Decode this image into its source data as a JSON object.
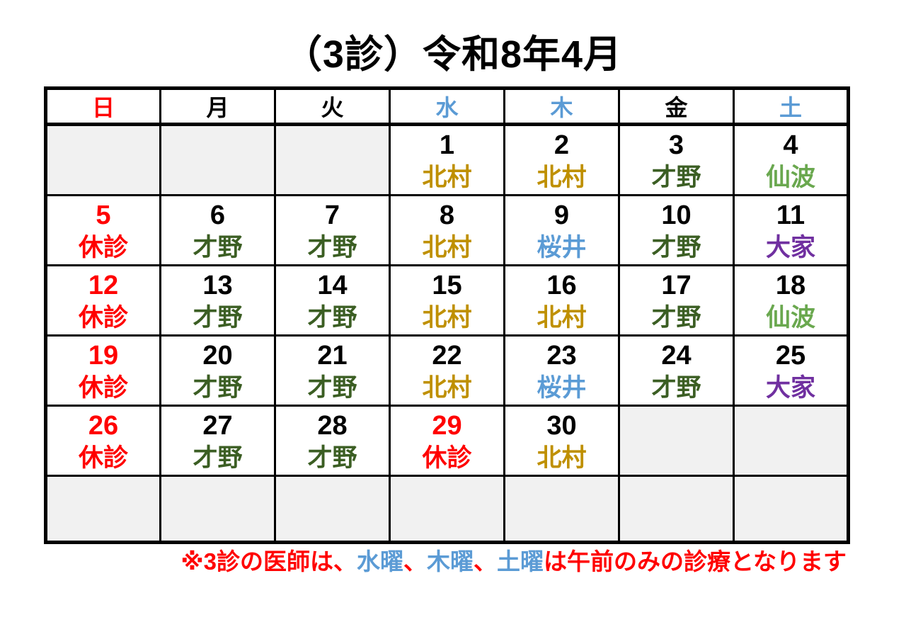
{
  "title": "（3診）令和8年4月",
  "colors": {
    "red": "#ff0000",
    "blue": "#5b9bd5",
    "black": "#000000",
    "gold": "#bf9000",
    "dark_green": "#3b5e23",
    "light_green": "#6aa84f",
    "purple": "#7030a0",
    "empty_bg": "#f1f1f1"
  },
  "weekdays": [
    {
      "label": "日",
      "color": "red"
    },
    {
      "label": "月",
      "color": "black"
    },
    {
      "label": "火",
      "color": "black"
    },
    {
      "label": "水",
      "color": "blue"
    },
    {
      "label": "木",
      "color": "blue"
    },
    {
      "label": "金",
      "color": "black"
    },
    {
      "label": "土",
      "color": "blue"
    }
  ],
  "weeks": [
    [
      {
        "empty": true
      },
      {
        "empty": true
      },
      {
        "empty": true
      },
      {
        "day": "1",
        "day_color": "black",
        "name": "北村",
        "name_color": "gold"
      },
      {
        "day": "2",
        "day_color": "black",
        "name": "北村",
        "name_color": "gold"
      },
      {
        "day": "3",
        "day_color": "black",
        "name": "才野",
        "name_color": "dark_green"
      },
      {
        "day": "4",
        "day_color": "black",
        "name": "仙波",
        "name_color": "light_green"
      }
    ],
    [
      {
        "day": "5",
        "day_color": "red",
        "name": "休診",
        "name_color": "red"
      },
      {
        "day": "6",
        "day_color": "black",
        "name": "才野",
        "name_color": "dark_green"
      },
      {
        "day": "7",
        "day_color": "black",
        "name": "才野",
        "name_color": "dark_green"
      },
      {
        "day": "8",
        "day_color": "black",
        "name": "北村",
        "name_color": "gold"
      },
      {
        "day": "9",
        "day_color": "black",
        "name": "桜井",
        "name_color": "blue"
      },
      {
        "day": "10",
        "day_color": "black",
        "name": "才野",
        "name_color": "dark_green"
      },
      {
        "day": "11",
        "day_color": "black",
        "name": "大家",
        "name_color": "purple"
      }
    ],
    [
      {
        "day": "12",
        "day_color": "red",
        "name": "休診",
        "name_color": "red"
      },
      {
        "day": "13",
        "day_color": "black",
        "name": "才野",
        "name_color": "dark_green"
      },
      {
        "day": "14",
        "day_color": "black",
        "name": "才野",
        "name_color": "dark_green"
      },
      {
        "day": "15",
        "day_color": "black",
        "name": "北村",
        "name_color": "gold"
      },
      {
        "day": "16",
        "day_color": "black",
        "name": "北村",
        "name_color": "gold"
      },
      {
        "day": "17",
        "day_color": "black",
        "name": "才野",
        "name_color": "dark_green"
      },
      {
        "day": "18",
        "day_color": "black",
        "name": "仙波",
        "name_color": "light_green"
      }
    ],
    [
      {
        "day": "19",
        "day_color": "red",
        "name": "休診",
        "name_color": "red"
      },
      {
        "day": "20",
        "day_color": "black",
        "name": "才野",
        "name_color": "dark_green"
      },
      {
        "day": "21",
        "day_color": "black",
        "name": "才野",
        "name_color": "dark_green"
      },
      {
        "day": "22",
        "day_color": "black",
        "name": "北村",
        "name_color": "gold"
      },
      {
        "day": "23",
        "day_color": "black",
        "name": "桜井",
        "name_color": "blue"
      },
      {
        "day": "24",
        "day_color": "black",
        "name": "才野",
        "name_color": "dark_green"
      },
      {
        "day": "25",
        "day_color": "black",
        "name": "大家",
        "name_color": "purple"
      }
    ],
    [
      {
        "day": "26",
        "day_color": "red",
        "name": "休診",
        "name_color": "red"
      },
      {
        "day": "27",
        "day_color": "black",
        "name": "才野",
        "name_color": "dark_green"
      },
      {
        "day": "28",
        "day_color": "black",
        "name": "才野",
        "name_color": "dark_green"
      },
      {
        "day": "29",
        "day_color": "red",
        "name": "休診",
        "name_color": "red"
      },
      {
        "day": "30",
        "day_color": "black",
        "name": "北村",
        "name_color": "gold"
      },
      {
        "empty": true
      },
      {
        "empty": true
      }
    ],
    [
      {
        "empty": true
      },
      {
        "empty": true
      },
      {
        "empty": true
      },
      {
        "empty": true
      },
      {
        "empty": true
      },
      {
        "empty": true
      },
      {
        "empty": true
      }
    ]
  ],
  "footer": {
    "segments": [
      {
        "text": "※3診の医師は、",
        "color": "red"
      },
      {
        "text": "水曜",
        "color": "blue"
      },
      {
        "text": "、",
        "color": "red"
      },
      {
        "text": "木曜",
        "color": "blue"
      },
      {
        "text": "、",
        "color": "red"
      },
      {
        "text": "土曜",
        "color": "blue"
      },
      {
        "text": "は午前のみの診療となります",
        "color": "red"
      }
    ]
  }
}
